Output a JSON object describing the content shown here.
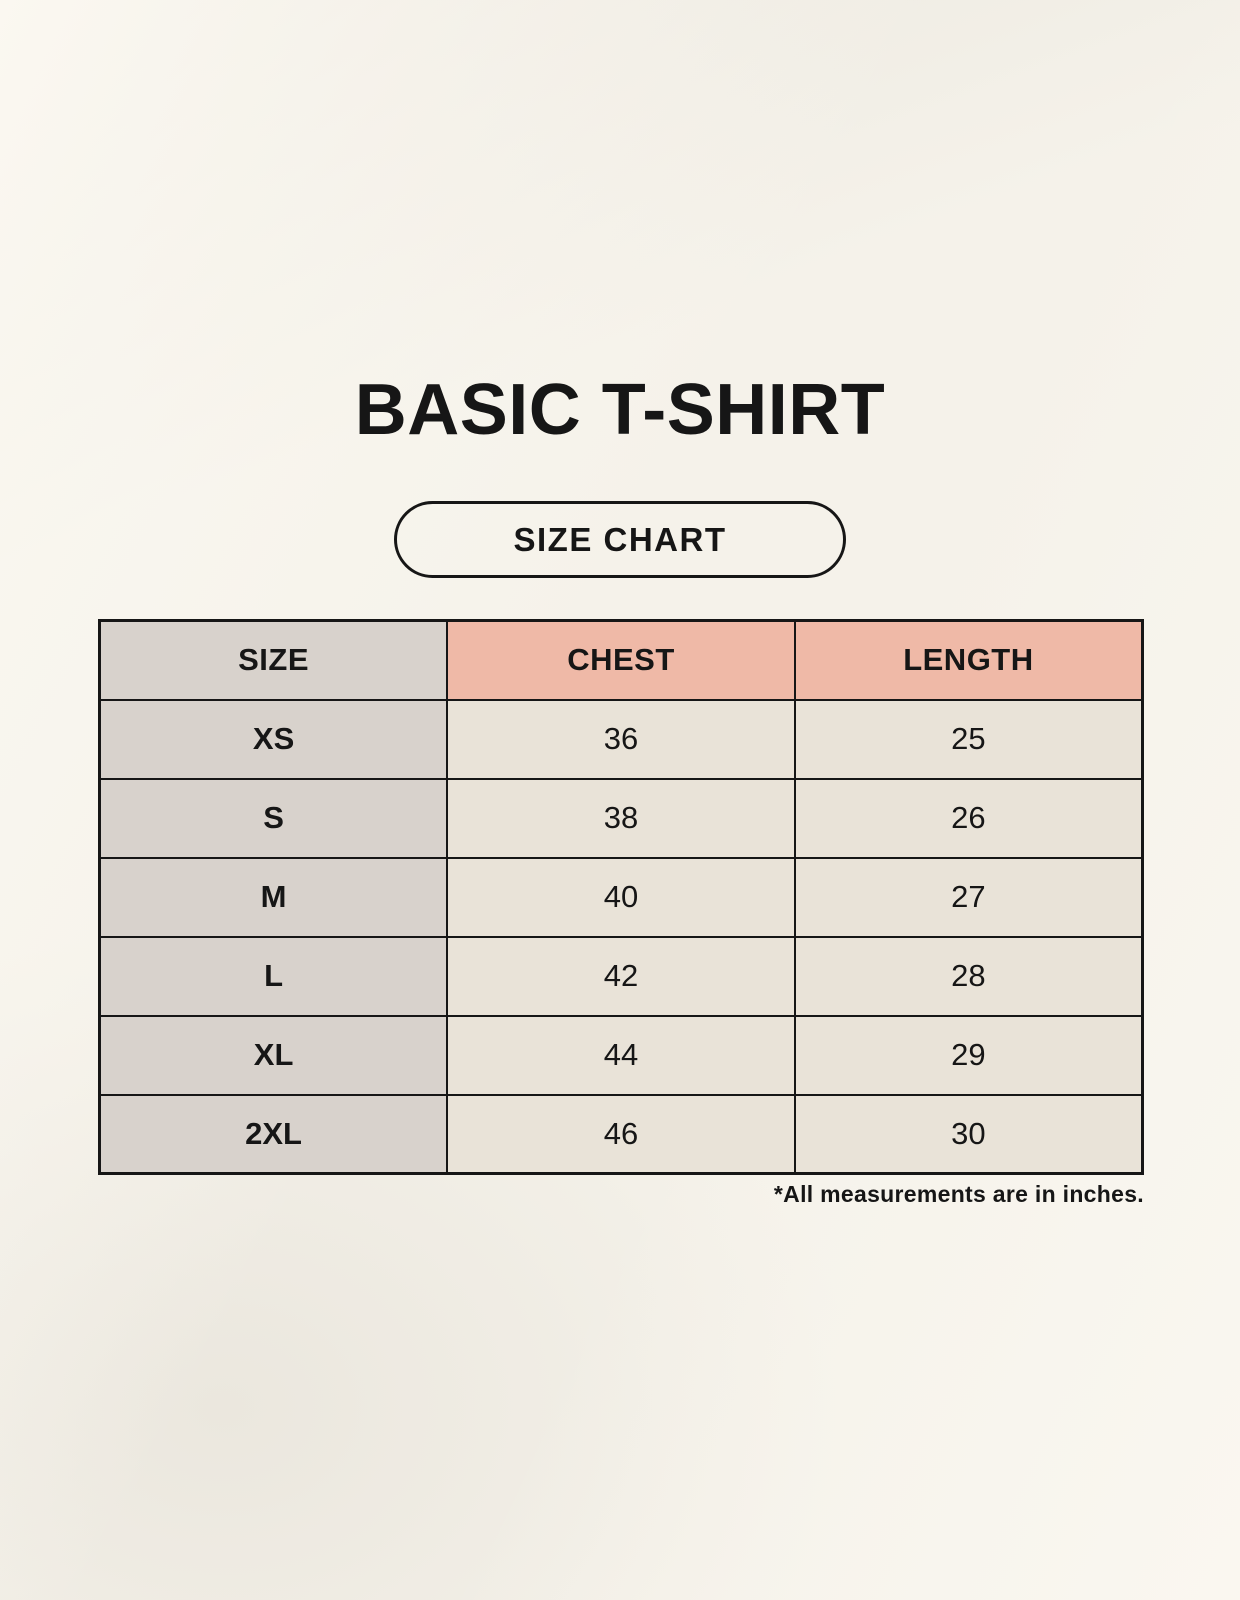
{
  "page": {
    "title": "BASIC T-SHIRT",
    "badge_label": "SIZE CHART",
    "footnote": "*All measurements are in inches."
  },
  "chart_data": {
    "type": "table",
    "title": "BASIC T-SHIRT",
    "subtitle": "SIZE CHART",
    "columns": [
      "SIZE",
      "CHEST",
      "LENGTH"
    ],
    "rows": [
      [
        "XS",
        "36",
        "25"
      ],
      [
        "S",
        "38",
        "26"
      ],
      [
        "M",
        "40",
        "27"
      ],
      [
        "L",
        "42",
        "28"
      ],
      [
        "XL",
        "44",
        "29"
      ],
      [
        "2XL",
        "46",
        "30"
      ]
    ],
    "units": "inches",
    "footnote": "*All measurements are in inches."
  },
  "colors": {
    "page_background": "#f5f2ea",
    "size_column_bg": "#d8d2cc",
    "header_accent_bg": "#efb9a7",
    "data_cell_bg": "#e9e3d8",
    "border": "#161616",
    "text": "#161616"
  }
}
